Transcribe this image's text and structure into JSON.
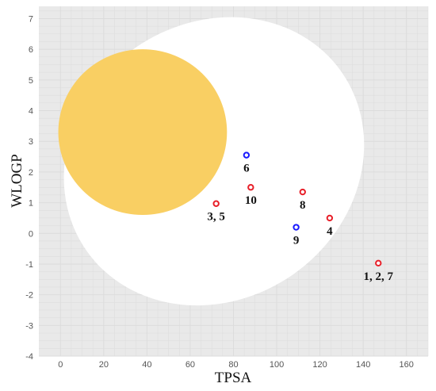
{
  "chart_data": {
    "type": "scatter",
    "title": "",
    "xlabel": "TPSA",
    "ylabel": "WLOGP",
    "xlim": [
      -10,
      170
    ],
    "ylim": [
      -4,
      7.4
    ],
    "xticks": [
      0,
      20,
      40,
      60,
      80,
      100,
      120,
      140,
      160
    ],
    "yticks": [
      -4,
      -3,
      -2,
      -1,
      0,
      1,
      2,
      3,
      4,
      5,
      6,
      7
    ],
    "grid": true,
    "colors": {
      "background": "#e9e9e9",
      "grid": "#dcdcdc",
      "white_region": "#ffffff",
      "yolk_region": "#f9cf63",
      "pgp_substrate": "#1a1aff",
      "non_substrate": "#e8202a"
    },
    "regions": [
      {
        "shape": "ellipse",
        "fill": "white_region",
        "center": [
          71,
          2.35
        ],
        "radii": [
          72,
          4.5
        ],
        "rotation_deg": -35
      },
      {
        "shape": "ellipse",
        "fill": "yolk_region",
        "center": [
          38,
          3.3
        ],
        "radii": [
          39,
          2.7
        ],
        "rotation_deg": 0
      }
    ],
    "points": [
      {
        "x": 147,
        "y": -0.97,
        "color": "red",
        "label": "1, 2, 7"
      },
      {
        "x": 72,
        "y": 0.97,
        "color": "red",
        "label": "3, 5"
      },
      {
        "x": 124.5,
        "y": 0.5,
        "color": "red",
        "label": "4"
      },
      {
        "x": 86,
        "y": 2.55,
        "color": "blue",
        "label": "6"
      },
      {
        "x": 112,
        "y": 1.35,
        "color": "red",
        "label": "8"
      },
      {
        "x": 109,
        "y": 0.2,
        "color": "blue",
        "label": "9"
      },
      {
        "x": 88,
        "y": 1.5,
        "color": "red",
        "label": "10"
      }
    ]
  }
}
